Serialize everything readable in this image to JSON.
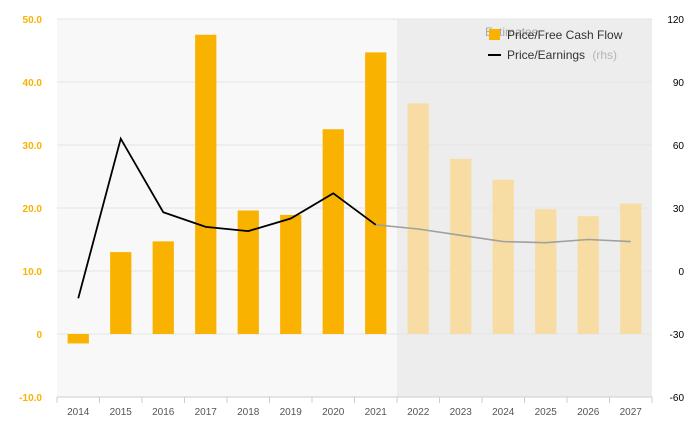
{
  "chart_data": {
    "type": "bar+line",
    "categories": [
      "2014",
      "2015",
      "2016",
      "2017",
      "2018",
      "2019",
      "2020",
      "2021",
      "2022",
      "2023",
      "2024",
      "2025",
      "2026",
      "2027"
    ],
    "estimate_start_index": 8,
    "estimates_label": "Estimates",
    "series": [
      {
        "name": "Price/Free Cash Flow",
        "type": "bar",
        "axis": "left",
        "values": [
          -1.5,
          13.0,
          14.7,
          47.5,
          19.6,
          18.9,
          32.5,
          44.7,
          36.6,
          27.8,
          24.5,
          19.8,
          18.7,
          20.7
        ]
      },
      {
        "name": "Price/Earnings",
        "rhs_label": "(rhs)",
        "type": "line",
        "axis": "right",
        "values": [
          -13,
          63,
          28,
          21,
          19,
          25,
          37,
          22,
          20,
          17,
          14,
          13.5,
          15,
          14
        ]
      }
    ],
    "y_left": {
      "min": -10,
      "max": 50,
      "ticks": [
        "-10.0",
        "0",
        "10.0",
        "20.0",
        "30.0",
        "40.0",
        "50.0"
      ]
    },
    "y_right": {
      "min": -60,
      "max": 120,
      "ticks": [
        "-60",
        "-30",
        "0",
        "30",
        "60",
        "90",
        "120"
      ]
    },
    "colors": {
      "bar": "#F9B200",
      "bar_estimate": "#F7DDA3",
      "line": "#000000",
      "line_estimate": "#A0A0A0",
      "estimate_bg": "#EDEDED",
      "left_axis_text": "#F9B200",
      "right_axis_text": "#000000",
      "grid": "#E5E5E5",
      "rhs_text": "#B5B5B5"
    }
  }
}
